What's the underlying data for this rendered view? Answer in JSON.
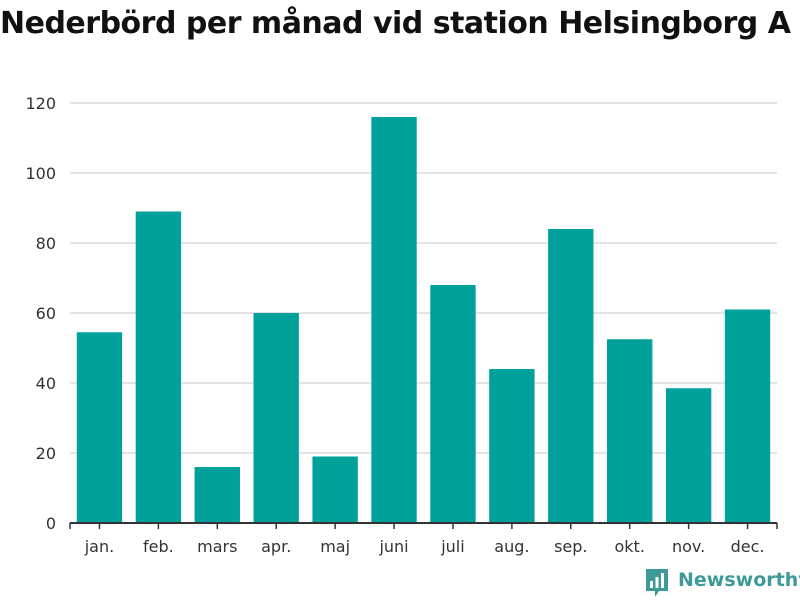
{
  "chart_data": {
    "type": "bar",
    "title": "Nederbörd per månad vid station Helsingborg A",
    "categories": [
      "jan.",
      "feb.",
      "mars",
      "apr.",
      "maj",
      "juni",
      "juli",
      "aug.",
      "sep.",
      "okt.",
      "nov.",
      "dec."
    ],
    "values": [
      54.5,
      89,
      16,
      60,
      19,
      116,
      68,
      44,
      84,
      52.5,
      38.5,
      61
    ],
    "xlabel": "",
    "ylabel": "",
    "ylim": [
      0,
      120
    ],
    "yticks": [
      0,
      20,
      40,
      60,
      80,
      100,
      120
    ],
    "grid": true,
    "bar_color": "#00a19a"
  },
  "branding": {
    "name": "Newsworthy",
    "color": "#3d9a98",
    "icon": "bar-chart-logo-icon"
  }
}
